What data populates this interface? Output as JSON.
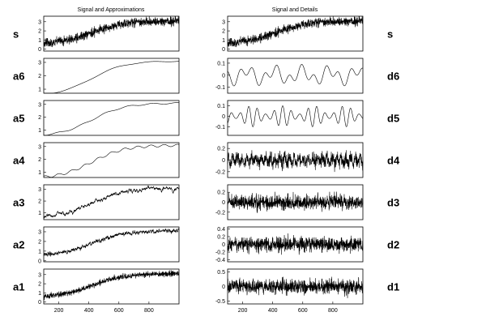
{
  "chart_data": {
    "type": "line",
    "titles": {
      "left": "Signal and Approximations",
      "right": "Signal and Details"
    },
    "x_range": [
      100,
      1000
    ],
    "x_ticks": [
      "200",
      "400",
      "600",
      "800"
    ],
    "left_panels": [
      {
        "label": "s",
        "yticks": [
          "0",
          "1",
          "2",
          "3"
        ],
        "ylim": [
          -0.2,
          3.6
        ],
        "kind": "signal"
      },
      {
        "label": "a6",
        "yticks": [
          "1",
          "2",
          "3"
        ],
        "ylim": [
          0.7,
          3.3
        ],
        "kind": "a6"
      },
      {
        "label": "a5",
        "yticks": [
          "1",
          "2",
          "3"
        ],
        "ylim": [
          0.6,
          3.3
        ],
        "kind": "a5"
      },
      {
        "label": "a4",
        "yticks": [
          "1",
          "2",
          "3"
        ],
        "ylim": [
          0.6,
          3.3
        ],
        "kind": "a4"
      },
      {
        "label": "a3",
        "yticks": [
          "1",
          "2",
          "3"
        ],
        "ylim": [
          0.4,
          3.4
        ],
        "kind": "a3"
      },
      {
        "label": "a2",
        "yticks": [
          "0",
          "1",
          "2",
          "3"
        ],
        "ylim": [
          -0.1,
          3.5
        ],
        "kind": "a2"
      },
      {
        "label": "a1",
        "yticks": [
          "0",
          "1",
          "2",
          "3"
        ],
        "ylim": [
          -0.2,
          3.6
        ],
        "kind": "a1"
      }
    ],
    "right_panels": [
      {
        "label": "s",
        "yticks": [
          "0",
          "1",
          "2",
          "3"
        ],
        "ylim": [
          -0.2,
          3.6
        ],
        "kind": "signal"
      },
      {
        "label": "d6",
        "yticks": [
          "-0.1",
          "0",
          "0.1"
        ],
        "ylim": [
          -0.15,
          0.14
        ],
        "kind": "d6"
      },
      {
        "label": "d5",
        "yticks": [
          "-0.1",
          "0",
          "0.1"
        ],
        "ylim": [
          -0.18,
          0.15
        ],
        "kind": "d5"
      },
      {
        "label": "d4",
        "yticks": [
          "-0.2",
          "0",
          "0.2"
        ],
        "ylim": [
          -0.3,
          0.3
        ],
        "kind": "d4"
      },
      {
        "label": "d3",
        "yticks": [
          "-0.2",
          "0",
          "0.2"
        ],
        "ylim": [
          -0.35,
          0.35
        ],
        "kind": "d3"
      },
      {
        "label": "d2",
        "yticks": [
          "-0.4",
          "-0.2",
          "0",
          "0.2",
          "0.4"
        ],
        "ylim": [
          -0.45,
          0.45
        ],
        "kind": "d2"
      },
      {
        "label": "d1",
        "yticks": [
          "-0.5",
          "0",
          "0.5"
        ],
        "ylim": [
          -0.6,
          0.6
        ],
        "kind": "d1"
      }
    ]
  }
}
